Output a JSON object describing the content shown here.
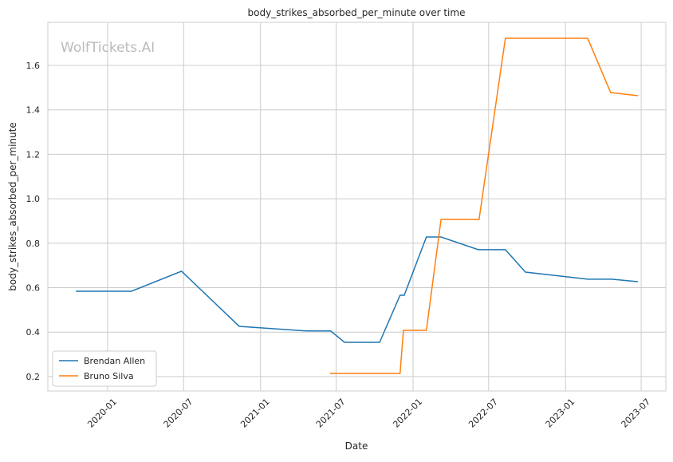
{
  "watermark": "WolfTickets.AI",
  "chart_data": {
    "type": "line",
    "title": "body_strikes_absorbed_per_minute over time",
    "xlabel": "Date",
    "ylabel": "body_strikes_absorbed_per_minute",
    "xlim": [
      "2019-08-11",
      "2023-08-29"
    ],
    "ylim": [
      0.135,
      1.794
    ],
    "grid": true,
    "legend_position": "lower-left",
    "x_ticks": [
      "2020-01",
      "2020-07",
      "2021-01",
      "2021-07",
      "2022-01",
      "2022-07",
      "2023-01",
      "2023-07"
    ],
    "y_ticks": [
      0.2,
      0.4,
      0.6,
      0.8,
      1.0,
      1.2,
      1.4,
      1.6
    ],
    "y_tick_labels": [
      "0.2",
      "0.4",
      "0.6",
      "0.8",
      "1.0",
      "1.2",
      "1.4",
      "1.6"
    ],
    "series": [
      {
        "name": "Brendan Allen",
        "color": "#1f77b4",
        "x": [
          "2019-10-17",
          "2020-02-27",
          "2020-06-26",
          "2020-11-11",
          "2021-04-22",
          "2021-06-18",
          "2021-07-21",
          "2021-10-13",
          "2021-12-01",
          "2021-12-11",
          "2022-02-02",
          "2022-03-09",
          "2022-06-06",
          "2022-08-10",
          "2022-09-27",
          "2023-02-23",
          "2023-04-21",
          "2023-06-23"
        ],
        "y": [
          0.584,
          0.584,
          0.674,
          0.426,
          0.405,
          0.405,
          0.354,
          0.354,
          0.566,
          0.566,
          0.828,
          0.828,
          0.771,
          0.771,
          0.67,
          0.638,
          0.638,
          0.627
        ]
      },
      {
        "name": "Bruno Silva",
        "color": "#ff7f0e",
        "x": [
          "2021-06-16",
          "2021-12-01",
          "2021-12-09",
          "2022-02-02",
          "2022-03-09",
          "2022-06-08",
          "2022-08-10",
          "2023-02-23",
          "2023-04-19",
          "2023-06-23"
        ],
        "y": [
          0.214,
          0.214,
          0.408,
          0.408,
          0.907,
          0.907,
          1.722,
          1.722,
          1.478,
          1.464
        ]
      }
    ]
  }
}
